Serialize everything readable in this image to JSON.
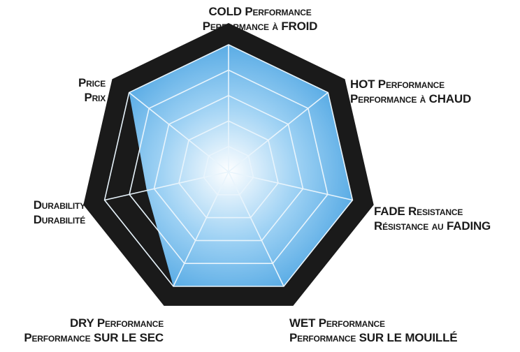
{
  "chart_data": {
    "type": "radar",
    "rings": 5,
    "max": 5,
    "axes": [
      {
        "key": "cold",
        "lines": [
          "COLD Performance",
          "Performance à FROID"
        ]
      },
      {
        "key": "hot",
        "lines": [
          "HOT Performance",
          "Performance à CHAUD"
        ]
      },
      {
        "key": "fade",
        "lines": [
          "FADE Resistance",
          "Résistance au FADING"
        ]
      },
      {
        "key": "wet",
        "lines": [
          "WET Performance",
          "Performance SUR LE MOUILLÉ"
        ]
      },
      {
        "key": "dry",
        "lines": [
          "DRY Performance",
          "Performance SUR LE SEC"
        ]
      },
      {
        "key": "dur",
        "lines": [
          "Durability",
          "Durabilité"
        ]
      },
      {
        "key": "price",
        "lines": [
          "Price",
          "Prix"
        ]
      }
    ],
    "values": [
      5,
      5,
      5,
      5,
      5,
      3.3,
      5
    ],
    "colors": {
      "frame": "#1a1a1a",
      "area_center": "#ffffff",
      "area_mid": "#9fd2f4",
      "area_edge": "#3f9ddf",
      "grid": "#e8f4fc"
    }
  }
}
